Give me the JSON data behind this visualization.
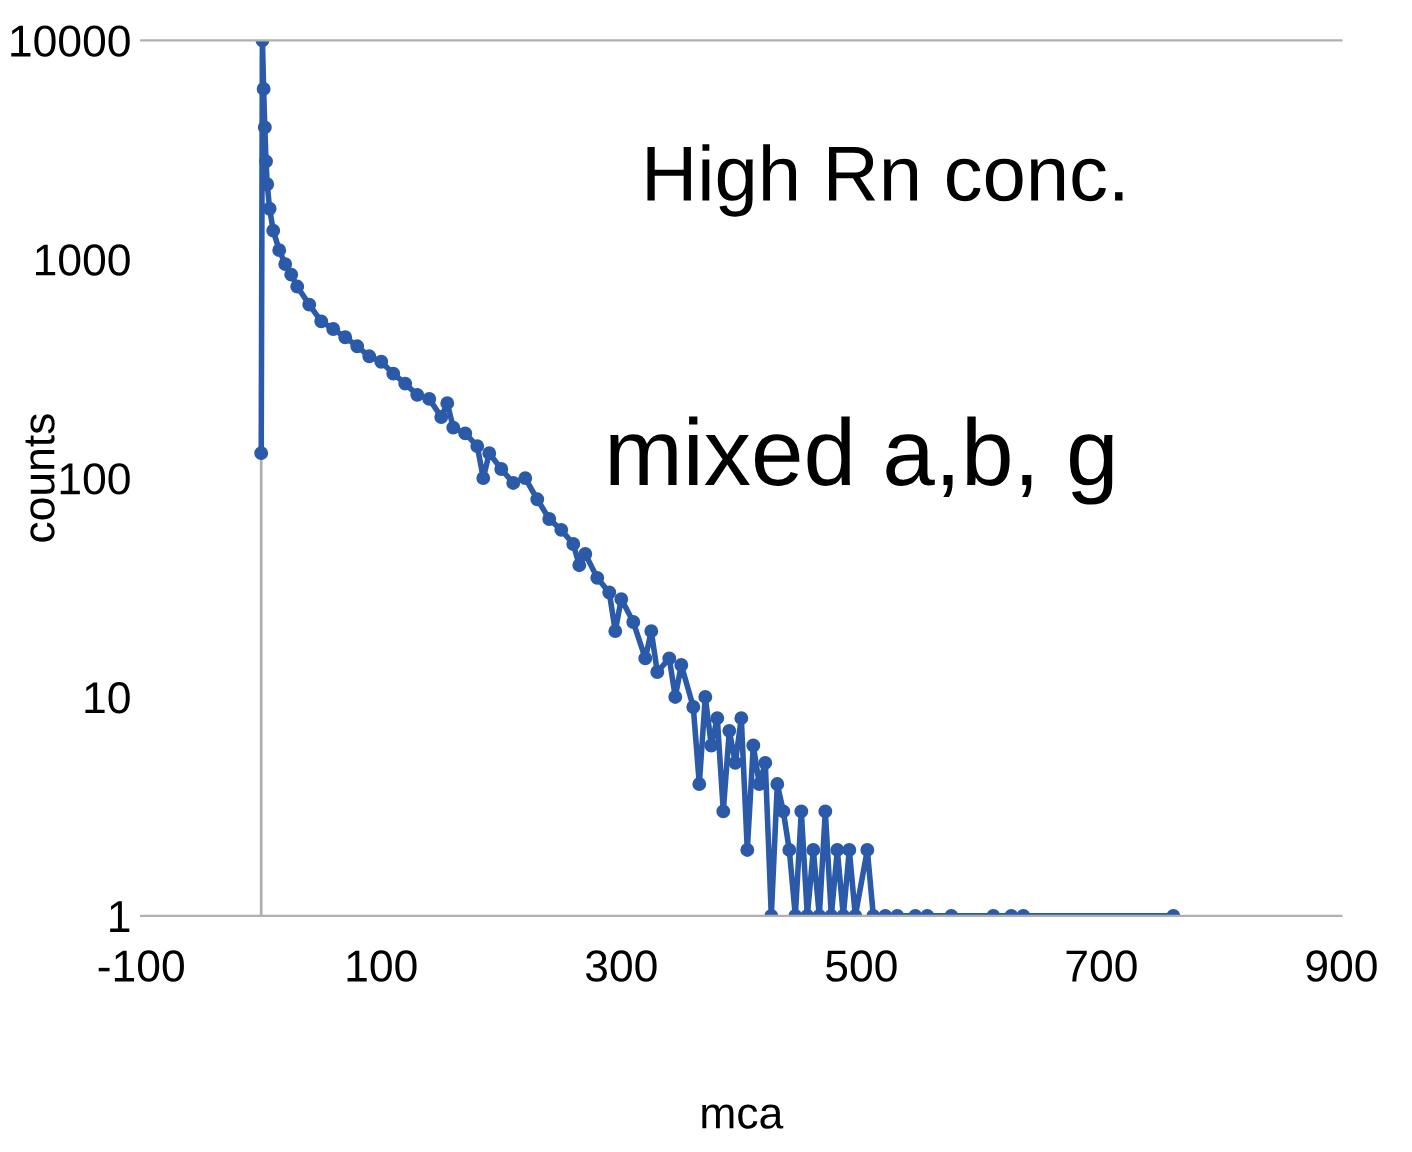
{
  "chart_data": {
    "type": "line",
    "xlabel": "mca",
    "ylabel": "counts",
    "log": "y",
    "marker": "circle",
    "line_style": "solid",
    "legend": false,
    "grid": false,
    "annotations": [
      "High Rn conc.",
      "mixed a,b, g"
    ],
    "xlim": [
      -100,
      900
    ],
    "xticks": [
      -100,
      100,
      300,
      500,
      700,
      900
    ],
    "ylim": [
      1,
      10000
    ],
    "yticks": [
      1,
      10,
      100,
      1000,
      10000
    ],
    "series": [
      {
        "color": "#2a5aa8",
        "x": [
          0,
          1,
          2,
          3,
          4,
          5,
          7,
          10,
          15,
          20,
          25,
          30,
          40,
          50,
          60,
          70,
          80,
          90,
          100,
          110,
          120,
          130,
          140,
          150,
          155,
          160,
          170,
          180,
          185,
          190,
          200,
          210,
          220,
          230,
          240,
          250,
          260,
          265,
          270,
          280,
          290,
          295,
          300,
          310,
          320,
          325,
          330,
          340,
          345,
          350,
          360,
          365,
          370,
          375,
          380,
          385,
          390,
          395,
          400,
          405,
          410,
          415,
          420,
          425,
          430,
          435,
          440,
          445,
          450,
          455,
          460,
          465,
          470,
          475,
          480,
          485,
          490,
          495,
          505,
          510,
          520,
          530,
          545,
          555,
          575,
          610,
          625,
          635,
          760
        ],
        "values": [
          130,
          10000,
          6000,
          4000,
          2800,
          2200,
          1700,
          1350,
          1100,
          950,
          850,
          750,
          620,
          520,
          480,
          440,
          400,
          360,
          340,
          300,
          270,
          240,
          230,
          190,
          220,
          170,
          160,
          140,
          100,
          130,
          110,
          95,
          100,
          80,
          65,
          58,
          50,
          40,
          45,
          35,
          30,
          20,
          28,
          22,
          15,
          20,
          13,
          15,
          10,
          14,
          9,
          4,
          10,
          6,
          8,
          3,
          7,
          5,
          8,
          2,
          6,
          4,
          5,
          1,
          4,
          3,
          2,
          1,
          3,
          1,
          2,
          1,
          3,
          1,
          2,
          1,
          2,
          1,
          2,
          1,
          1,
          1,
          1,
          1,
          1,
          1,
          1,
          1,
          1
        ]
      }
    ]
  }
}
